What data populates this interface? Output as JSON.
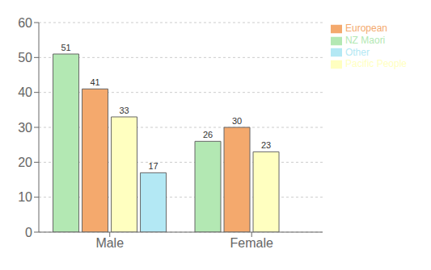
{
  "chart_data": {
    "type": "bar",
    "categories": [
      "Male",
      "Female"
    ],
    "series": [
      {
        "name": "NZ Maori",
        "color": "#b3e8b3",
        "values": [
          51,
          26
        ]
      },
      {
        "name": "European",
        "color": "#f4a96d",
        "values": [
          41,
          30
        ]
      },
      {
        "name": "Pacific People",
        "color": "#ffffc0",
        "values": [
          33,
          23
        ]
      },
      {
        "name": "Other",
        "color": "#b3e8f4",
        "values": [
          17,
          null
        ]
      }
    ],
    "ylim": [
      0,
      60
    ],
    "yticks": [
      0,
      10,
      20,
      30,
      40,
      50,
      60
    ],
    "grid": true,
    "legend": "upper right",
    "data_labels": true
  }
}
